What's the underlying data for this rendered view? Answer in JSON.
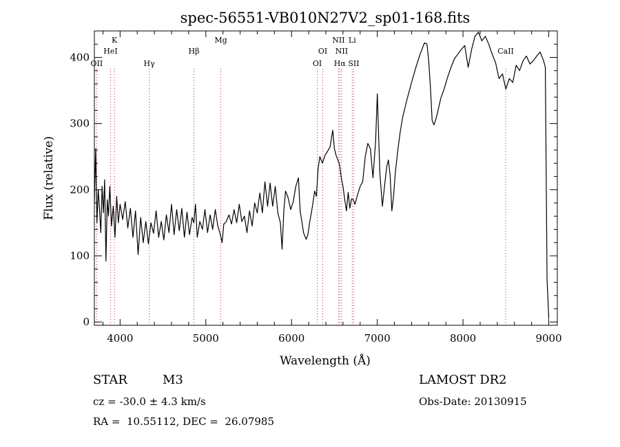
{
  "chart_data": {
    "type": "line",
    "title": "spec-56551-VB010N27V2_sp01-168.fits",
    "xlabel": "Wavelength (Å)",
    "ylabel": "Flux (relative)",
    "xlim": [
      3700,
      9100
    ],
    "ylim": [
      -5,
      440
    ],
    "xticks": [
      4000,
      5000,
      6000,
      7000,
      8000,
      9000
    ],
    "yticks": [
      0,
      100,
      200,
      300,
      400
    ],
    "grid": false,
    "series": [
      {
        "x": [
          3700,
          3715,
          3730,
          3745,
          3760,
          3775,
          3790,
          3805,
          3820,
          3835,
          3850,
          3865,
          3880,
          3900,
          3920,
          3940,
          3960,
          3980,
          4000,
          4030,
          4060,
          4090,
          4120,
          4150,
          4180,
          4210,
          4240,
          4270,
          4300,
          4330,
          4360,
          4390,
          4420,
          4450,
          4480,
          4510,
          4540,
          4570,
          4600,
          4630,
          4660,
          4690,
          4720,
          4750,
          4780,
          4810,
          4840,
          4860,
          4880,
          4900,
          4930,
          4960,
          4990,
          5020,
          5050,
          5080,
          5110,
          5140,
          5170,
          5190,
          5210,
          5240,
          5270,
          5300,
          5330,
          5360,
          5390,
          5420,
          5450,
          5480,
          5510,
          5540,
          5570,
          5600,
          5630,
          5660,
          5690,
          5720,
          5750,
          5780,
          5810,
          5840,
          5870,
          5890,
          5910,
          5930,
          5960,
          5990,
          6020,
          6050,
          6080,
          6100,
          6120,
          6140,
          6170,
          6190,
          6210,
          6240,
          6270,
          6290,
          6310,
          6330,
          6360,
          6390,
          6420,
          6450,
          6480,
          6500,
          6520,
          6540,
          6560,
          6580,
          6600,
          6620,
          6640,
          6660,
          6680,
          6700,
          6720,
          6740,
          6770,
          6800,
          6830,
          6860,
          6890,
          6920,
          6950,
          6980,
          7000,
          7030,
          7060,
          7090,
          7110,
          7130,
          7150,
          7170,
          7190,
          7210,
          7240,
          7270,
          7300,
          7350,
          7400,
          7450,
          7500,
          7550,
          7580,
          7600,
          7620,
          7640,
          7660,
          7680,
          7700,
          7740,
          7780,
          7820,
          7860,
          7900,
          7940,
          7980,
          8020,
          8060,
          8100,
          8140,
          8180,
          8220,
          8260,
          8300,
          8340,
          8380,
          8420,
          8460,
          8500,
          8540,
          8580,
          8620,
          8660,
          8700,
          8740,
          8780,
          8820,
          8860,
          8900,
          8940,
          8960,
          8980,
          9000
        ],
        "y": [
          180,
          262,
          150,
          200,
          170,
          135,
          205,
          165,
          215,
          92,
          185,
          160,
          205,
          145,
          175,
          128,
          190,
          150,
          178,
          155,
          182,
          142,
          172,
          128,
          168,
          102,
          158,
          120,
          152,
          118,
          150,
          134,
          168,
          128,
          152,
          124,
          162,
          135,
          178,
          132,
          170,
          138,
          172,
          128,
          166,
          132,
          158,
          150,
          178,
          128,
          152,
          140,
          170,
          135,
          162,
          140,
          170,
          145,
          132,
          120,
          148,
          152,
          162,
          148,
          170,
          150,
          178,
          152,
          160,
          135,
          168,
          145,
          180,
          165,
          195,
          165,
          212,
          175,
          210,
          175,
          205,
          165,
          150,
          110,
          168,
          198,
          188,
          170,
          182,
          205,
          218,
          168,
          152,
          135,
          125,
          132,
          150,
          172,
          198,
          190,
          232,
          250,
          240,
          252,
          258,
          265,
          290,
          262,
          252,
          245,
          238,
          218,
          205,
          185,
          168,
          196,
          172,
          186,
          185,
          178,
          192,
          205,
          212,
          250,
          270,
          262,
          218,
          272,
          345,
          225,
          175,
          212,
          235,
          245,
          222,
          168,
          190,
          225,
          260,
          290,
          312,
          338,
          362,
          385,
          405,
          422,
          420,
          395,
          355,
          305,
          298,
          305,
          315,
          338,
          352,
          370,
          385,
          398,
          405,
          412,
          418,
          385,
          412,
          432,
          438,
          425,
          432,
          420,
          405,
          392,
          368,
          375,
          352,
          368,
          362,
          388,
          380,
          395,
          402,
          390,
          395,
          402,
          408,
          395,
          385,
          65,
          5
        ]
      }
    ],
    "lines": [
      {
        "name": "OII",
        "x": 3727,
        "row": 3
      },
      {
        "name": "K",
        "x": 3934,
        "row": 1
      },
      {
        "name": "HeI",
        "x": 3889,
        "row": 2
      },
      {
        "name": "Hγ",
        "x": 4340,
        "row": 3
      },
      {
        "name": "Hβ",
        "x": 4861,
        "row": 2
      },
      {
        "name": "Mg",
        "x": 5175,
        "row": 1
      },
      {
        "name": "OI",
        "x": 6300,
        "row": 3
      },
      {
        "name": "OI",
        "x": 6364,
        "row": 2
      },
      {
        "name": "NII",
        "x": 6548,
        "row": 1
      },
      {
        "name": "NII",
        "x": 6584,
        "row": 2
      },
      {
        "name": "Hα",
        "x": 6563,
        "row": 3
      },
      {
        "name": "Li",
        "x": 6708,
        "row": 1
      },
      {
        "name": "SII",
        "x": 6725,
        "row": 3
      },
      {
        "name": "CaII",
        "x": 8498,
        "row": 2
      }
    ]
  },
  "footer": {
    "object_type": "STAR",
    "subclass": "M3",
    "redshift": "cz = -30.0 ± 4.3 km/s",
    "coords": "RA =  10.55112, DEC =  26.07985",
    "survey": "LAMOST DR2",
    "obs_date": "Obs-Date: 20130915"
  }
}
